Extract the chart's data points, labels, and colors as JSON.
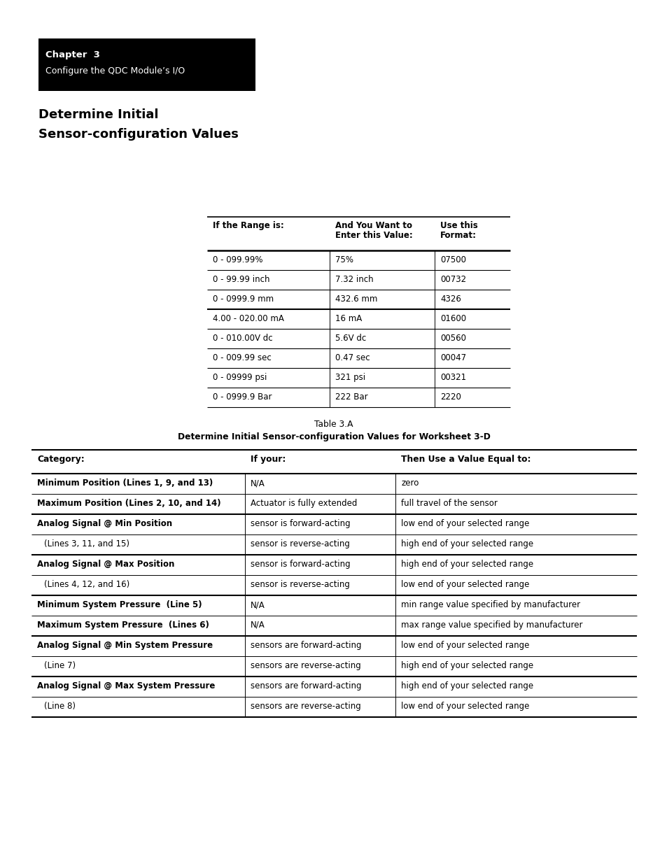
{
  "page_bg": "#ffffff",
  "header_bg": "#000000",
  "header_text_color": "#ffffff",
  "header_line1": "Chapter  3",
  "header_line2": "Configure the QDC Module’s I/O",
  "section_title_line1": "Determine Initial",
  "section_title_line2": "Sensor-configuration Values",
  "table1_headers": [
    "If the Range is:",
    "And You Want to\nEnter this Value:",
    "Use this\nFormat:"
  ],
  "table1_rows": [
    [
      "0 - 099.99%",
      "75%",
      "07500"
    ],
    [
      "0 - 99.99 inch",
      "7.32 inch",
      "00732"
    ],
    [
      "0 - 0999.9 mm",
      "432.6 mm",
      "4326"
    ],
    [
      "4.00 - 020.00 mA",
      "16 mA",
      "01600"
    ],
    [
      "0 - 010.00V dc",
      "5.6V dc",
      "00560"
    ],
    [
      "0 - 009.99 sec",
      "0.47 sec",
      "00047"
    ],
    [
      "0 - 09999 psi",
      "321 psi",
      "00321"
    ],
    [
      "0 - 0999.9 Bar",
      "222 Bar",
      "2220"
    ]
  ],
  "table2_caption_line1": "Table 3.A",
  "table2_caption_line2": "Determine Initial Sensor-configuration Values for Worksheet 3-D",
  "table2_headers": [
    "Category:",
    "If your:",
    "Then Use a Value Equal to:"
  ],
  "table2_rows": [
    [
      "Minimum Position (Lines 1, 9, and 13)",
      "N/A",
      "zero",
      false
    ],
    [
      "Maximum Position (Lines 2, 10, and 14)",
      "Actuator is fully extended",
      "full travel of the sensor",
      false
    ],
    [
      "Analog Signal @ Min Position",
      "sensor is forward-acting",
      "low end of your selected range",
      false
    ],
    [
      "(Lines 3, 11, and 15)",
      "sensor is reverse-acting",
      "high end of your selected range",
      true
    ],
    [
      "Analog Signal @ Max Position",
      "sensor is forward-acting",
      "high end of your selected range",
      false
    ],
    [
      "(Lines 4, 12, and 16)",
      "sensor is reverse-acting",
      "low end of your selected range",
      true
    ],
    [
      "Minimum System Pressure  (Line 5)",
      "N/A",
      "min range value specified by manufacturer",
      false
    ],
    [
      "Maximum System Pressure  (Lines 6)",
      "N/A",
      "max range value specified by manufacturer",
      false
    ],
    [
      "Analog Signal @ Min System Pressure",
      "sensors are forward-acting",
      "low end of your selected range",
      false
    ],
    [
      "(Line 7)",
      "sensors are reverse-acting",
      "high end of your selected range",
      true
    ],
    [
      "Analog Signal @ Max System Pressure",
      "sensors are forward-acting",
      "high end of your selected range",
      false
    ],
    [
      "(Line 8)",
      "sensors are reverse-acting",
      "low end of your selected range",
      true
    ]
  ],
  "table2_thick_after": [
    1,
    3,
    5,
    7,
    9,
    11
  ],
  "table2_bold_col0": [
    0,
    1,
    2,
    4,
    6,
    7,
    8,
    10
  ]
}
